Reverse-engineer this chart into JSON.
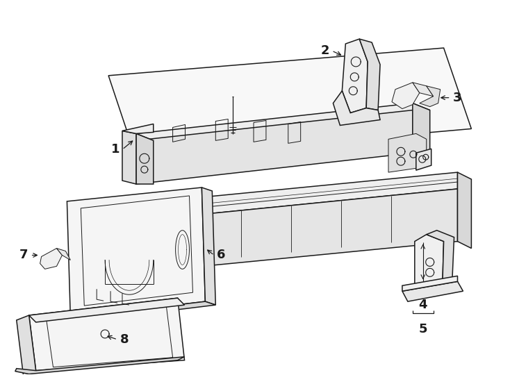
{
  "bg_color": "#ffffff",
  "line_color": "#1a1a1a",
  "lw": 1.1,
  "lw2": 0.7,
  "fig_width": 7.34,
  "fig_height": 5.4
}
